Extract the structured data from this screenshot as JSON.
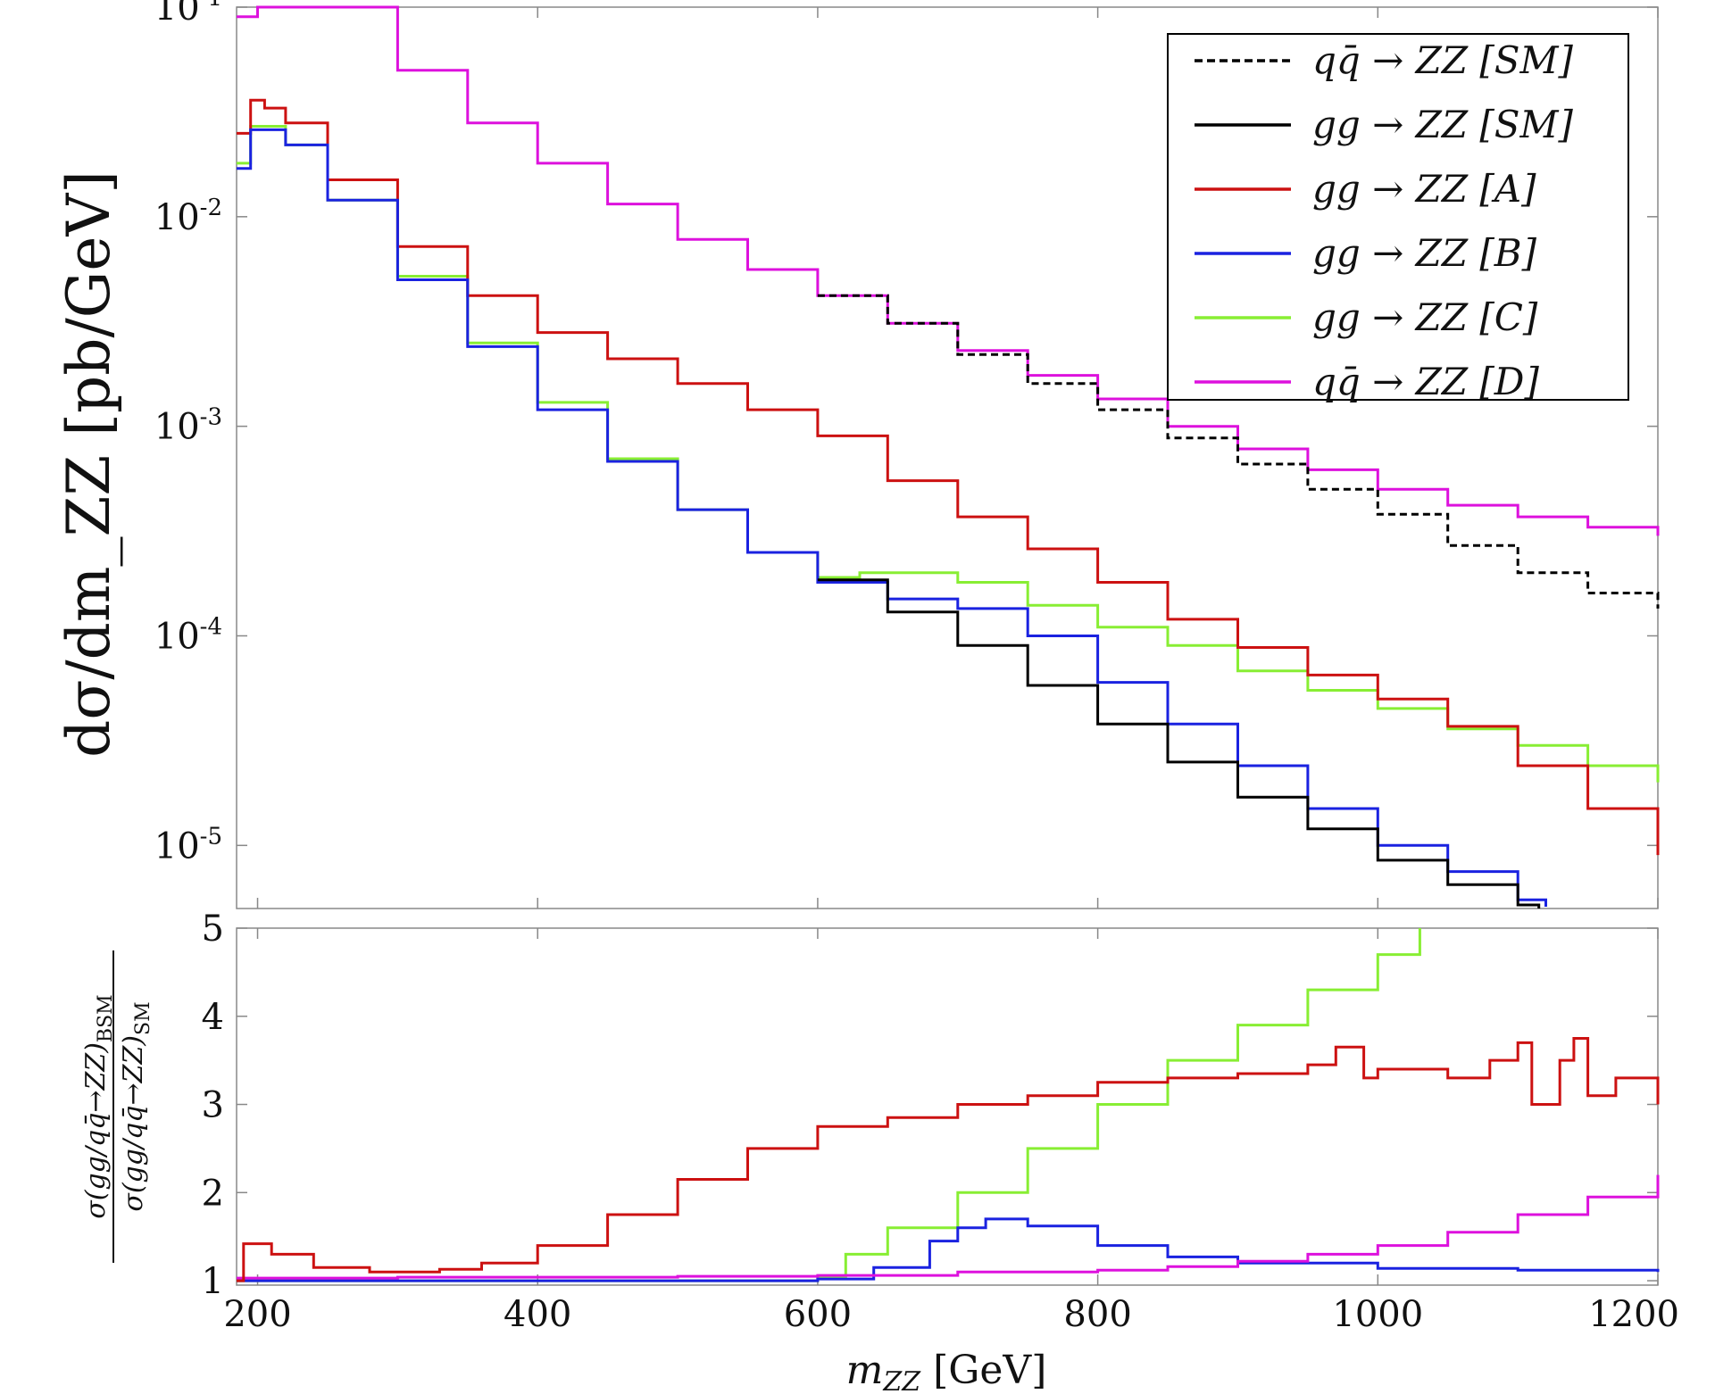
{
  "chart_data": [
    {
      "type": "line",
      "scale": "log",
      "ylabel": "dσ/dm_ZZ  [pb/GeV]",
      "xlim": [
        185,
        1200
      ],
      "ylim": [
        5e-06,
        0.1
      ],
      "yticks": [
        {
          "value": 0.1,
          "label": "10",
          "exp": "-1"
        },
        {
          "value": 0.01,
          "label": "10",
          "exp": "-2"
        },
        {
          "value": 0.001,
          "label": "10",
          "exp": "-3"
        },
        {
          "value": 0.0001,
          "label": "10",
          "exp": "-4"
        },
        {
          "value": 1e-05,
          "label": "10",
          "exp": "-5"
        }
      ],
      "legend": {
        "placement": "top-right",
        "entries": [
          {
            "key": "qq_sm",
            "label": "qq̄ → ZZ [SM]",
            "color": "#000000",
            "dashed": true
          },
          {
            "key": "gg_sm",
            "label": "gg → ZZ [SM]",
            "color": "#000000",
            "dashed": false
          },
          {
            "key": "gg_a",
            "label": "gg → ZZ [A]",
            "color": "#cc1111",
            "dashed": false
          },
          {
            "key": "gg_b",
            "label": "gg → ZZ [B]",
            "color": "#1a22e0",
            "dashed": false
          },
          {
            "key": "gg_c",
            "label": "gg → ZZ [C]",
            "color": "#88ee33",
            "dashed": false
          },
          {
            "key": "qq_d",
            "label": "qq̄ → ZZ [D]",
            "color": "#dd11dd",
            "dashed": false
          }
        ]
      },
      "series": [
        {
          "key": "qq_d",
          "color": "#dd11dd",
          "dashed": false,
          "x": [
            185,
            200,
            250,
            300,
            350,
            400,
            450,
            500,
            550,
            600,
            650,
            700,
            750,
            800,
            850,
            900,
            950,
            1000,
            1050,
            1100,
            1150,
            1200
          ],
          "y": [
            0.09,
            0.11,
            0.1,
            0.05,
            0.028,
            0.018,
            0.0115,
            0.0078,
            0.0056,
            0.0042,
            0.0031,
            0.0023,
            0.00175,
            0.00135,
            0.001,
            0.00078,
            0.00062,
            0.0005,
            0.00042,
            0.00037,
            0.00033,
            0.0003
          ]
        },
        {
          "key": "qq_sm",
          "color": "#000000",
          "dashed": true,
          "x": [
            600,
            650,
            700,
            750,
            800,
            850,
            900,
            950,
            1000,
            1050,
            1100,
            1150,
            1200
          ],
          "y": [
            0.0042,
            0.0031,
            0.0022,
            0.0016,
            0.0012,
            0.00088,
            0.00066,
            0.0005,
            0.00038,
            0.00027,
            0.0002,
            0.00016,
            0.000135
          ]
        },
        {
          "key": "gg_c",
          "color": "#88ee33",
          "dashed": false,
          "x": [
            185,
            195,
            205,
            220,
            250,
            300,
            350,
            400,
            450,
            500,
            550,
            600,
            630,
            650,
            700,
            750,
            800,
            850,
            900,
            950,
            1000,
            1050,
            1100,
            1150,
            1200
          ],
          "y": [
            0.018,
            0.027,
            0.027,
            0.022,
            0.012,
            0.0052,
            0.0025,
            0.0013,
            0.0007,
            0.0004,
            0.00025,
            0.00019,
            0.0002,
            0.0002,
            0.00018,
            0.00014,
            0.00011,
            9e-05,
            6.8e-05,
            5.5e-05,
            4.5e-05,
            3.6e-05,
            3e-05,
            2.4e-05,
            2e-05
          ]
        },
        {
          "key": "gg_a",
          "color": "#cc1111",
          "dashed": false,
          "x": [
            185,
            195,
            205,
            220,
            250,
            300,
            350,
            400,
            450,
            500,
            550,
            600,
            650,
            700,
            750,
            800,
            850,
            900,
            950,
            1000,
            1050,
            1100,
            1150,
            1200
          ],
          "y": [
            0.025,
            0.036,
            0.033,
            0.028,
            0.015,
            0.0072,
            0.0042,
            0.0028,
            0.0021,
            0.0016,
            0.0012,
            0.0009,
            0.00055,
            0.00037,
            0.00026,
            0.00018,
            0.00012,
            8.8e-05,
            6.5e-05,
            5e-05,
            3.7e-05,
            2.4e-05,
            1.5e-05,
            9e-06
          ]
        },
        {
          "key": "gg_b",
          "color": "#1a22e0",
          "dashed": false,
          "x": [
            185,
            195,
            205,
            220,
            250,
            300,
            350,
            400,
            450,
            500,
            550,
            600,
            650,
            700,
            750,
            800,
            850,
            900,
            950,
            1000,
            1050,
            1100,
            1120
          ],
          "y": [
            0.017,
            0.026,
            0.026,
            0.022,
            0.012,
            0.005,
            0.0024,
            0.0012,
            0.00068,
            0.0004,
            0.00025,
            0.00018,
            0.00015,
            0.000135,
            0.0001,
            6e-05,
            3.8e-05,
            2.4e-05,
            1.5e-05,
            1e-05,
            7.5e-06,
            5.5e-06,
            5.1e-06
          ]
        },
        {
          "key": "gg_sm",
          "color": "#000000",
          "dashed": false,
          "x": [
            600,
            650,
            700,
            750,
            800,
            850,
            900,
            950,
            1000,
            1050,
            1100,
            1115
          ],
          "y": [
            0.000185,
            0.00013,
            9e-05,
            5.8e-05,
            3.8e-05,
            2.5e-05,
            1.7e-05,
            1.2e-05,
            8.5e-06,
            6.5e-06,
            5.2e-06,
            5e-06
          ]
        }
      ]
    },
    {
      "type": "line",
      "scale": "linear",
      "title_num": "σ(gg/qq̄→ZZ)",
      "title_num_sub": "BSM",
      "title_den": "σ(gg/qq̄→ZZ)",
      "title_den_sub": "SM",
      "xlabel": "m",
      "xlabel_sub": "ZZ",
      "xlabel_unit": " [GeV]",
      "xlim": [
        185,
        1200
      ],
      "ylim": [
        0.95,
        5
      ],
      "xticks": [
        200,
        400,
        600,
        800,
        1000,
        1200
      ],
      "yticks": [
        1,
        2,
        3,
        4,
        5
      ],
      "series": [
        {
          "key": "gg_c",
          "color": "#88ee33",
          "x": [
            185,
            300,
            400,
            500,
            590,
            600,
            620,
            650,
            700,
            750,
            800,
            850,
            900,
            950,
            1000,
            1030
          ],
          "y": [
            1.0,
            1.0,
            1.0,
            1.0,
            1.0,
            1.05,
            1.3,
            1.6,
            2.0,
            2.5,
            3.0,
            3.5,
            3.9,
            4.3,
            4.7,
            5.0
          ]
        },
        {
          "key": "gg_b",
          "color": "#1a22e0",
          "x": [
            185,
            300,
            400,
            500,
            600,
            640,
            680,
            700,
            720,
            750,
            800,
            850,
            900,
            1000,
            1100,
            1200
          ],
          "y": [
            1.0,
            1.0,
            1.0,
            1.0,
            1.02,
            1.15,
            1.45,
            1.6,
            1.7,
            1.62,
            1.4,
            1.27,
            1.2,
            1.14,
            1.12,
            1.1
          ]
        },
        {
          "key": "qq_d",
          "color": "#dd11dd",
          "x": [
            185,
            300,
            400,
            500,
            600,
            700,
            800,
            850,
            900,
            950,
            1000,
            1050,
            1100,
            1150,
            1200
          ],
          "y": [
            1.03,
            1.04,
            1.04,
            1.05,
            1.06,
            1.1,
            1.12,
            1.16,
            1.22,
            1.3,
            1.4,
            1.55,
            1.75,
            1.95,
            2.2
          ]
        },
        {
          "key": "gg_a",
          "color": "#cc1111",
          "x": [
            185,
            190,
            210,
            240,
            280,
            300,
            330,
            360,
            400,
            450,
            500,
            550,
            600,
            650,
            700,
            750,
            800,
            850,
            900,
            950,
            970,
            990,
            1000,
            1050,
            1080,
            1100,
            1110,
            1130,
            1140,
            1150,
            1170,
            1200
          ],
          "y": [
            1.0,
            1.42,
            1.3,
            1.15,
            1.1,
            1.1,
            1.13,
            1.2,
            1.4,
            1.75,
            2.15,
            2.5,
            2.75,
            2.85,
            3.0,
            3.1,
            3.25,
            3.3,
            3.35,
            3.45,
            3.65,
            3.3,
            3.4,
            3.3,
            3.5,
            3.7,
            3.0,
            3.5,
            3.75,
            3.1,
            3.3,
            3.0
          ]
        }
      ]
    }
  ]
}
